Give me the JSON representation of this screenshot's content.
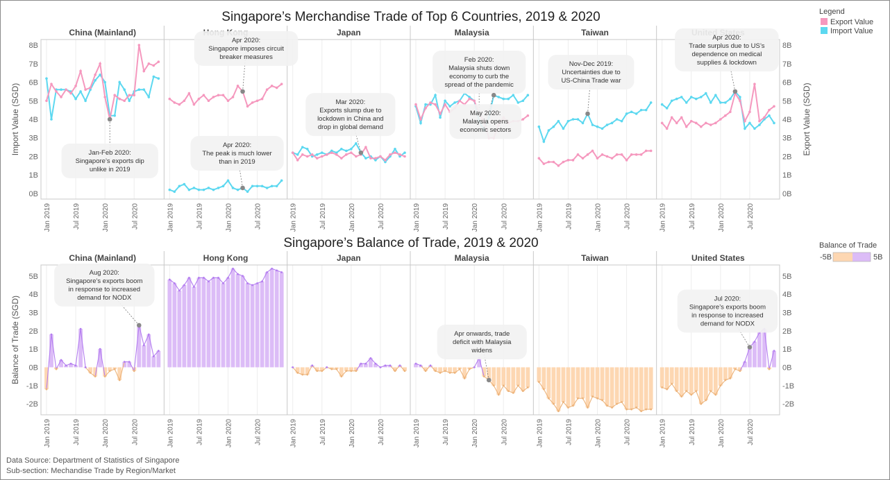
{
  "top_title": "Singapore’s Merchandise Trade of Top 6 Countries, 2019 & 2020",
  "bottom_title": "Singapore’s Balance of Trade, 2019 & 2020",
  "legend": {
    "title": "Legend",
    "export_label": "Export Value",
    "import_label": "Import Value"
  },
  "bot_legend": {
    "title": "Balance of Trade",
    "min_label": "-5B",
    "max_label": "5B"
  },
  "colors": {
    "export": "#f598be",
    "import": "#5cd8f0",
    "positive": "#dcbcf7",
    "positive_line": "#b37df0",
    "negative": "#fdd7b2",
    "negative_line": "#ecb37a",
    "marker": "#888888"
  },
  "axes": {
    "top_left_label": "Import Value (SGD)",
    "top_right_label": "Export Value (SGD)",
    "bottom_left_label": "Balance of Trade (SGD)",
    "top_ticks": [
      "0B",
      "1B",
      "2B",
      "3B",
      "4B",
      "5B",
      "6B",
      "7B",
      "8B"
    ],
    "bottom_ticks": [
      "-2B",
      "-1B",
      "0B",
      "1B",
      "2B",
      "3B",
      "4B",
      "5B"
    ],
    "x_ticks": [
      "Jan 2019",
      "Jul 2019",
      "Jan 2020",
      "Jul 2020"
    ]
  },
  "source": {
    "line1": "Data Source: Department of Statistics of Singapore",
    "line2": "Sub-section: Mechandise Trade by Region/Market"
  },
  "chart_data": [
    {
      "type": "line",
      "title": "Singapore’s Merchandise Trade of Top 6 Countries, 2019 & 2020",
      "ylabel": "Import Value (SGD)",
      "y2label": "Export Value (SGD)",
      "ylim": [
        -0.3,
        8.3
      ],
      "x_start": "Jan 2019",
      "x_end": "Dec 2020",
      "panels": [
        {
          "name": "China (Mainland)",
          "export": [
            5.0,
            5.9,
            5.5,
            5.2,
            5.6,
            5.4,
            5.8,
            6.6,
            5.6,
            5.7,
            6.4,
            7.0,
            5.2,
            4.0,
            5.3,
            5.1,
            5.0,
            5.3,
            5.3,
            8.0,
            6.6,
            7.0,
            6.9,
            7.1
          ],
          "import": [
            6.2,
            4.0,
            5.6,
            5.6,
            5.6,
            5.5,
            5.1,
            5.5,
            5.0,
            5.6,
            6.1,
            6.4,
            6.0,
            4.2,
            4.2,
            6.0,
            5.6,
            5.0,
            5.5,
            5.6,
            5.6,
            5.2,
            6.3,
            6.2
          ]
        },
        {
          "name": "Hong Kong",
          "export": [
            5.1,
            4.9,
            4.8,
            5.0,
            5.4,
            4.8,
            5.1,
            5.3,
            5.0,
            5.2,
            5.3,
            5.3,
            5.0,
            5.2,
            5.8,
            5.5,
            4.7,
            4.9,
            5.0,
            5.1,
            5.6,
            5.8,
            5.7,
            5.9
          ],
          "import": [
            0.2,
            0.1,
            0.4,
            0.5,
            0.2,
            0.3,
            0.2,
            0.2,
            0.3,
            0.2,
            0.3,
            0.4,
            0.7,
            0.3,
            0.2,
            0.3,
            0.1,
            0.4,
            0.4,
            0.4,
            0.3,
            0.4,
            0.4,
            0.7
          ]
        },
        {
          "name": "Japan",
          "export": [
            2.2,
            1.8,
            2.1,
            2.0,
            2.1,
            1.9,
            2.0,
            2.1,
            2.2,
            2.1,
            1.9,
            2.1,
            2.2,
            2.0,
            2.1,
            2.5,
            1.9,
            1.9,
            2.0,
            1.8,
            2.1,
            2.2,
            2.1,
            2.0
          ],
          "import": [
            2.2,
            2.1,
            2.5,
            2.4,
            2.0,
            2.1,
            2.2,
            2.1,
            2.3,
            2.2,
            2.4,
            2.3,
            2.4,
            2.7,
            2.2,
            1.9,
            2.0,
            1.8,
            2.0,
            1.7,
            2.0,
            2.4,
            2.0,
            2.2
          ]
        },
        {
          "name": "Malaysia",
          "export": [
            4.8,
            4.0,
            4.6,
            4.9,
            4.8,
            4.3,
            4.8,
            4.4,
            4.6,
            5.0,
            4.8,
            5.1,
            5.0,
            4.3,
            3.9,
            3.0,
            3.0,
            3.7,
            4.1,
            3.8,
            3.9,
            3.9,
            4.0,
            4.2
          ],
          "import": [
            4.7,
            3.8,
            4.8,
            4.8,
            5.3,
            4.1,
            5.0,
            4.7,
            4.9,
            5.0,
            5.4,
            5.2,
            5.0,
            3.9,
            3.4,
            4.1,
            5.3,
            5.2,
            5.1,
            5.1,
            5.3,
            4.9,
            5.0,
            5.3
          ]
        },
        {
          "name": "Taiwan",
          "export": [
            1.9,
            1.6,
            1.7,
            1.7,
            1.5,
            1.7,
            1.8,
            1.8,
            2.1,
            1.9,
            2.1,
            2.3,
            1.9,
            2.1,
            2.0,
            1.9,
            2.1,
            2.1,
            1.8,
            2.1,
            2.1,
            2.1,
            2.3,
            2.3
          ],
          "import": [
            3.6,
            2.8,
            3.4,
            3.6,
            3.9,
            3.5,
            3.9,
            4.0,
            4.0,
            3.8,
            4.3,
            3.7,
            3.6,
            3.5,
            3.7,
            3.8,
            4.0,
            3.9,
            4.3,
            4.4,
            4.3,
            4.5,
            4.5,
            4.9
          ],
          "import_fixed_last": [
            2.8
          ]
        },
        {
          "name": "United States",
          "export": [
            3.8,
            3.5,
            4.1,
            3.8,
            4.1,
            3.6,
            3.9,
            3.8,
            3.6,
            3.8,
            3.7,
            3.8,
            4.0,
            4.2,
            4.4,
            5.4,
            5.0,
            3.9,
            4.4,
            5.9,
            3.9,
            4.1,
            4.5,
            4.7
          ],
          "import": [
            4.8,
            4.6,
            5.0,
            5.1,
            5.2,
            4.9,
            5.2,
            5.1,
            5.2,
            5.4,
            4.9,
            5.3,
            4.9,
            4.9,
            5.1,
            5.5,
            5.2,
            3.5,
            3.8,
            3.5,
            3.7,
            4.0,
            4.2,
            3.8
          ]
        }
      ]
    },
    {
      "type": "bar",
      "title": "Singapore’s Balance of Trade, 2019 & 2020",
      "ylabel": "Balance of Trade (SGD)",
      "ylim": [
        -2.6,
        5.6
      ],
      "x_start": "Jan 2019",
      "x_end": "Dec 2020",
      "panels": [
        {
          "name": "China (Mainland)",
          "values": [
            -1.2,
            1.8,
            -0.1,
            0.4,
            0.1,
            0.2,
            0.1,
            2.1,
            0.0,
            -0.3,
            -0.5,
            1.0,
            -0.5,
            -0.2,
            -0.1,
            -0.7,
            0.3,
            0.3,
            -0.2,
            2.3,
            1.2,
            1.8,
            0.6,
            0.9
          ]
        },
        {
          "name": "Hong Kong",
          "values": [
            4.8,
            4.6,
            4.2,
            4.5,
            4.9,
            4.4,
            4.9,
            4.9,
            4.7,
            4.9,
            4.9,
            4.6,
            4.9,
            5.4,
            5.1,
            5.0,
            4.6,
            4.5,
            4.6,
            4.7,
            5.2,
            5.4,
            5.3,
            5.2
          ]
        },
        {
          "name": "Japan",
          "values": [
            0.0,
            -0.3,
            -0.4,
            -0.4,
            0.1,
            -0.2,
            -0.2,
            0.0,
            -0.1,
            -0.1,
            -0.5,
            -0.2,
            -0.2,
            -0.2,
            0.2,
            0.2,
            0.5,
            0.2,
            0.0,
            0.1,
            0.1,
            -0.2,
            0.1,
            -0.2
          ]
        },
        {
          "name": "Malaysia",
          "values": [
            0.2,
            0.1,
            -0.2,
            0.1,
            -0.2,
            -0.3,
            -0.2,
            -0.3,
            -0.3,
            -0.1,
            -0.6,
            -0.1,
            0.0,
            0.5,
            -0.5,
            -0.7,
            -1.0,
            -1.5,
            -1.0,
            -1.3,
            -1.4,
            -1.0,
            -1.3,
            -1.1
          ]
        },
        {
          "name": "Taiwan",
          "values": [
            -0.8,
            -1.2,
            -1.7,
            -2.0,
            -2.4,
            -1.9,
            -2.2,
            -2.1,
            -1.7,
            -1.7,
            -2.2,
            -1.6,
            -1.7,
            -1.8,
            -2.1,
            -2.2,
            -2.0,
            -1.9,
            -2.3,
            -2.3,
            -2.2,
            -2.4,
            -2.3,
            -2.3
          ]
        },
        {
          "name": "United States",
          "values": [
            -1.1,
            -1.2,
            -0.9,
            -1.3,
            -1.6,
            -1.3,
            -1.5,
            -1.3,
            -2.0,
            -1.8,
            -1.3,
            -1.5,
            -1.0,
            -0.7,
            -0.6,
            -0.1,
            -0.2,
            0.3,
            1.1,
            1.4,
            1.9,
            2.1,
            -0.1,
            0.9
          ]
        }
      ]
    }
  ],
  "annotations": {
    "top": [
      {
        "panel": 0,
        "month": 13,
        "series": "export",
        "text": [
          "Jan-Feb 2020:",
          "Singapore’s exports dip",
          "unlike in 2019"
        ]
      },
      {
        "panel": 1,
        "month": 15,
        "series": "export",
        "text": [
          "Apr 2020:",
          "Singapore imposes circuit",
          "breaker measures"
        ]
      },
      {
        "panel": 1,
        "month": 15,
        "series": "import",
        "text": [
          "Apr 2020:",
          "The peak is much lower",
          "than in 2019"
        ]
      },
      {
        "panel": 2,
        "month": 14,
        "series": "import",
        "text": [
          "Mar 2020:",
          "Exports slump due to",
          "lockdown in China and",
          "drop in global demand"
        ]
      },
      {
        "panel": 3,
        "month": 13,
        "series": "export",
        "text": [
          "Feb 2020:",
          "Malaysia shuts down",
          "economy to curb the",
          "spread of the pandemic"
        ]
      },
      {
        "panel": 3,
        "month": 16,
        "series": "import",
        "text": [
          "May 2020:",
          "Malaysia opens",
          "economic sectors"
        ]
      },
      {
        "panel": 4,
        "month": 10,
        "series": "import",
        "text": [
          "Nov-Dec 2019:",
          "Uncertainties due to",
          "US-China Trade war"
        ]
      },
      {
        "panel": 5,
        "month": 15,
        "series": "import",
        "text": [
          "Apr 2020:",
          "Trade surplus due to US’s",
          "dependence  on medical",
          "supplies & lockdown"
        ]
      }
    ],
    "bottom": [
      {
        "panel": 0,
        "month": 19,
        "text": [
          "Aug 2020:",
          "Singapore’s exports boom",
          "in response to increased",
          "demand for NODX"
        ]
      },
      {
        "panel": 3,
        "month": 15,
        "text": [
          "Apr  onwards, trade",
          "deficit with Malaysia",
          "widens"
        ]
      },
      {
        "panel": 5,
        "month": 18,
        "text": [
          "Jul 2020:",
          "Singapore’s exports boom",
          "in response to increased",
          "demand for NODX"
        ]
      }
    ]
  }
}
